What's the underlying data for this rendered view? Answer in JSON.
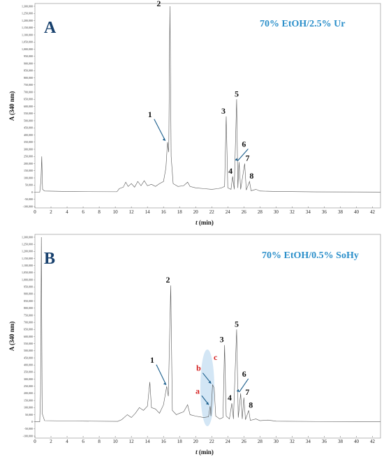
{
  "chart_data": [
    {
      "panel": "A",
      "condition": "70% EtOH/2.5% Ur",
      "type": "line",
      "ylabel": "A (340 nm)",
      "xlabel": "t (min)",
      "xlim": [
        0,
        43
      ],
      "ylim": [
        -100000,
        1300000
      ],
      "x_ticks": [
        0,
        2,
        4,
        6,
        8,
        10,
        12,
        14,
        16,
        18,
        20,
        22,
        24,
        26,
        28,
        30,
        32,
        34,
        36,
        38,
        40,
        42
      ],
      "y_ticks": [
        "1,300,000",
        "1,250,000",
        "1,200,000",
        "1,150,000",
        "1,100,000",
        "1,050,000",
        "1,000,000",
        "950,000",
        "900,000",
        "850,000",
        "800,000",
        "750,000",
        "700,000",
        "650,000",
        "600,000",
        "550,000",
        "500,000",
        "450,000",
        "400,000",
        "350,000",
        "300,000",
        "250,000",
        "200,000",
        "150,000",
        "100,000",
        "50,000",
        "0",
        "-50,000",
        "-100,000"
      ],
      "peaks": [
        {
          "label": "1",
          "t": 16.4,
          "value": 350000
        },
        {
          "label": "2",
          "t": 16.8,
          "value": 1300000
        },
        {
          "label": "3",
          "t": 23.8,
          "value": 530000
        },
        {
          "label": "4",
          "t": 24.6,
          "value": 110000
        },
        {
          "label": "5",
          "t": 25.1,
          "value": 650000
        },
        {
          "label": "6",
          "t": 25.4,
          "value": 210000
        },
        {
          "label": "7",
          "t": 26.1,
          "value": 200000
        },
        {
          "label": "8",
          "t": 26.7,
          "value": 75000
        }
      ],
      "trace": [
        [
          0,
          0
        ],
        [
          0.6,
          0
        ],
        [
          0.75,
          80000
        ],
        [
          0.85,
          250000
        ],
        [
          0.95,
          20000
        ],
        [
          1.2,
          8000
        ],
        [
          5,
          4000
        ],
        [
          10.2,
          3000
        ],
        [
          10.5,
          25000
        ],
        [
          11,
          35000
        ],
        [
          11.3,
          70000
        ],
        [
          11.6,
          40000
        ],
        [
          12,
          60000
        ],
        [
          12.4,
          35000
        ],
        [
          12.8,
          75000
        ],
        [
          13.2,
          45000
        ],
        [
          13.6,
          80000
        ],
        [
          14,
          45000
        ],
        [
          14.5,
          55000
        ],
        [
          15,
          40000
        ],
        [
          15.5,
          60000
        ],
        [
          16,
          75000
        ],
        [
          16.3,
          170000
        ],
        [
          16.5,
          350000
        ],
        [
          16.65,
          280000
        ],
        [
          16.8,
          1300000
        ],
        [
          16.95,
          250000
        ],
        [
          17.2,
          60000
        ],
        [
          17.8,
          40000
        ],
        [
          18.5,
          45000
        ],
        [
          19,
          70000
        ],
        [
          19.3,
          40000
        ],
        [
          20,
          30000
        ],
        [
          21,
          25000
        ],
        [
          22,
          20000
        ],
        [
          22.8,
          25000
        ],
        [
          23.2,
          30000
        ],
        [
          23.6,
          40000
        ],
        [
          23.8,
          530000
        ],
        [
          24,
          30000
        ],
        [
          24.4,
          20000
        ],
        [
          24.6,
          110000
        ],
        [
          24.8,
          20000
        ],
        [
          25.1,
          650000
        ],
        [
          25.25,
          30000
        ],
        [
          25.4,
          210000
        ],
        [
          25.6,
          20000
        ],
        [
          26.1,
          200000
        ],
        [
          26.3,
          15000
        ],
        [
          26.7,
          75000
        ],
        [
          26.9,
          10000
        ],
        [
          27.5,
          20000
        ],
        [
          28,
          8000
        ],
        [
          30,
          5000
        ],
        [
          35,
          2000
        ],
        [
          43,
          1000
        ]
      ]
    },
    {
      "panel": "B",
      "condition": "70% EtOH/0.5% SoHy",
      "type": "line",
      "ylabel": "A (340 nm)",
      "xlabel": "t (min)",
      "xlim": [
        0,
        43
      ],
      "ylim": [
        -100000,
        1300000
      ],
      "x_ticks": [
        0,
        2,
        4,
        6,
        8,
        10,
        12,
        14,
        16,
        18,
        20,
        22,
        24,
        26,
        28,
        30,
        32,
        34,
        36,
        38,
        40,
        42
      ],
      "y_ticks": [
        "1,300,000",
        "1,250,000",
        "1,200,000",
        "1,150,000",
        "1,100,000",
        "1,050,000",
        "1,000,000",
        "950,000",
        "900,000",
        "850,000",
        "800,000",
        "750,000",
        "700,000",
        "650,000",
        "600,000",
        "550,000",
        "500,000",
        "450,000",
        "400,000",
        "350,000",
        "300,000",
        "250,000",
        "200,000",
        "150,000",
        "100,000",
        "50,000",
        "0",
        "-50,000",
        "-100,000"
      ],
      "peaks": [
        {
          "label": "1",
          "t": 16.5,
          "value": 250000
        },
        {
          "label": "2",
          "t": 16.9,
          "value": 960000
        },
        {
          "label": "3",
          "t": 23.6,
          "value": 540000
        },
        {
          "label": "4",
          "t": 24.5,
          "value": 130000
        },
        {
          "label": "5",
          "t": 25.1,
          "value": 650000
        },
        {
          "label": "6",
          "t": 25.6,
          "value": 200000
        },
        {
          "label": "7",
          "t": 26.0,
          "value": 170000
        },
        {
          "label": "8",
          "t": 26.6,
          "value": 80000
        }
      ],
      "extra_peaks": [
        {
          "label": "a",
          "t": 21.8,
          "value": 110000
        },
        {
          "label": "b",
          "t": 22.1,
          "value": 260000
        },
        {
          "label": "c",
          "t": 22.3,
          "value": 240000
        }
      ],
      "trace": [
        [
          0,
          0
        ],
        [
          0.6,
          0
        ],
        [
          0.7,
          200000
        ],
        [
          0.8,
          1300000
        ],
        [
          0.9,
          60000
        ],
        [
          1.2,
          8000
        ],
        [
          5,
          5000
        ],
        [
          10.3,
          3000
        ],
        [
          10.8,
          15000
        ],
        [
          11.5,
          50000
        ],
        [
          12,
          30000
        ],
        [
          12.5,
          60000
        ],
        [
          13,
          100000
        ],
        [
          13.5,
          80000
        ],
        [
          14,
          110000
        ],
        [
          14.3,
          280000
        ],
        [
          14.5,
          100000
        ],
        [
          15,
          90000
        ],
        [
          15.5,
          60000
        ],
        [
          16,
          120000
        ],
        [
          16.4,
          250000
        ],
        [
          16.6,
          180000
        ],
        [
          16.9,
          960000
        ],
        [
          17.1,
          80000
        ],
        [
          17.6,
          50000
        ],
        [
          18,
          60000
        ],
        [
          18.5,
          70000
        ],
        [
          19,
          120000
        ],
        [
          19.3,
          50000
        ],
        [
          20,
          40000
        ],
        [
          21,
          30000
        ],
        [
          21.6,
          35000
        ],
        [
          21.8,
          110000
        ],
        [
          21.9,
          40000
        ],
        [
          22.1,
          260000
        ],
        [
          22.3,
          240000
        ],
        [
          22.5,
          40000
        ],
        [
          23,
          20000
        ],
        [
          23.4,
          30000
        ],
        [
          23.6,
          540000
        ],
        [
          23.8,
          40000
        ],
        [
          24.2,
          20000
        ],
        [
          24.5,
          130000
        ],
        [
          24.7,
          20000
        ],
        [
          25.1,
          650000
        ],
        [
          25.3,
          30000
        ],
        [
          25.6,
          200000
        ],
        [
          25.8,
          20000
        ],
        [
          26,
          170000
        ],
        [
          26.2,
          15000
        ],
        [
          26.6,
          80000
        ],
        [
          26.8,
          10000
        ],
        [
          27.5,
          20000
        ],
        [
          28,
          8000
        ],
        [
          29,
          12000
        ],
        [
          30,
          4000
        ],
        [
          35,
          2000
        ],
        [
          43,
          1000
        ]
      ]
    }
  ]
}
